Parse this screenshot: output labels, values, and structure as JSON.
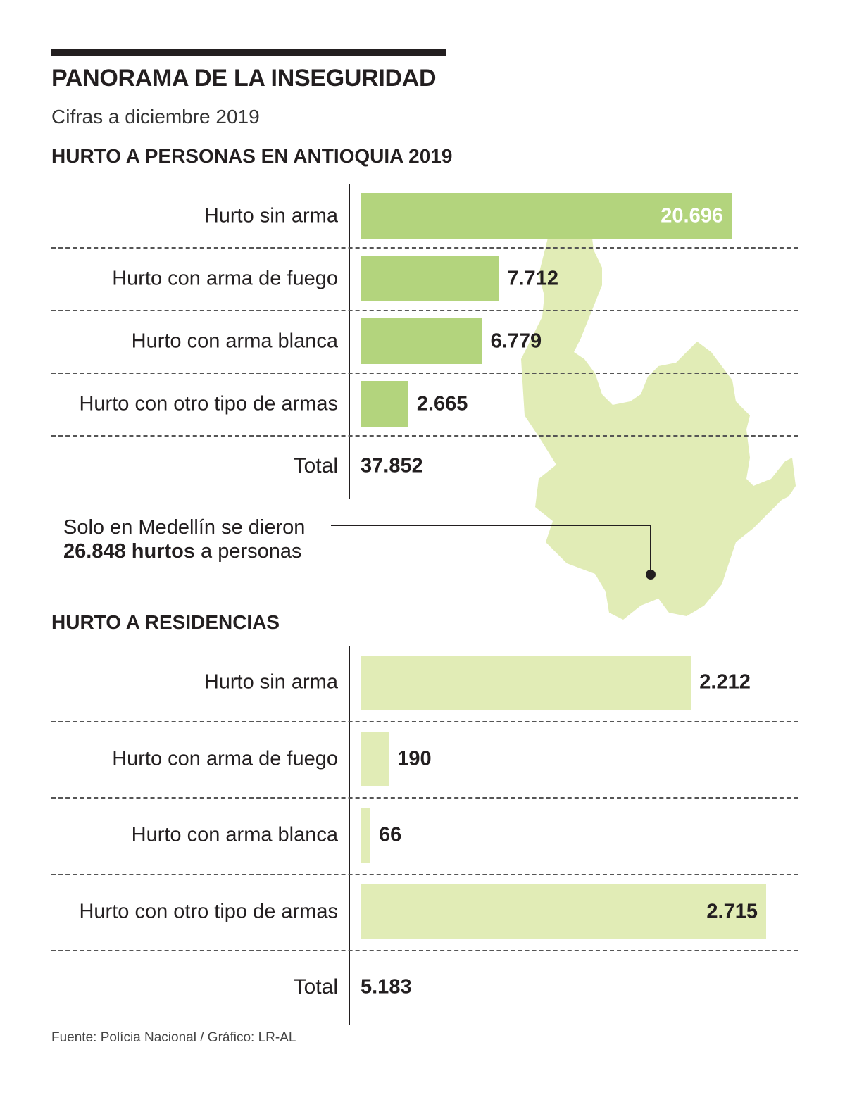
{
  "header": {
    "title": "PANORAMA DE LA INSEGURIDAD",
    "subtitle": "Cifras a diciembre 2019"
  },
  "colors": {
    "bar_personas": "#b3d47d",
    "bar_residencias": "#e1ecb6",
    "map_fill": "#e1ecb6",
    "text": "#231f20"
  },
  "chart_data": [
    {
      "type": "bar",
      "orientation": "horizontal",
      "title": "HURTO A PERSONAS EN ANTIOQUIA 2019",
      "categories": [
        "Hurto sin arma",
        "Hurto con arma de fuego",
        "Hurto con arma blanca",
        "Hurto con otro tipo de armas"
      ],
      "values": [
        20696,
        7712,
        6779,
        2665
      ],
      "value_labels": [
        "20.696",
        "7.712",
        "6.779",
        "2.665"
      ],
      "total_label": "Total",
      "total_value": "37.852"
    },
    {
      "type": "bar",
      "orientation": "horizontal",
      "title": "HURTO A RESIDENCIAS",
      "categories": [
        "Hurto sin arma",
        "Hurto con arma de fuego",
        "Hurto con arma blanca",
        "Hurto con otro tipo de armas"
      ],
      "values": [
        2212,
        190,
        66,
        2715
      ],
      "value_labels": [
        "2.212",
        "190",
        "66",
        "2.715"
      ],
      "total_label": "Total",
      "total_value": "5.183"
    }
  ],
  "annotation": {
    "line1": "Solo en Medellín se dieron",
    "bold": "26.848 hurtos",
    "rest": " a personas"
  },
  "footer": {
    "source": "Fuente: Polícia Nacional / Gráfico: LR-AL"
  }
}
